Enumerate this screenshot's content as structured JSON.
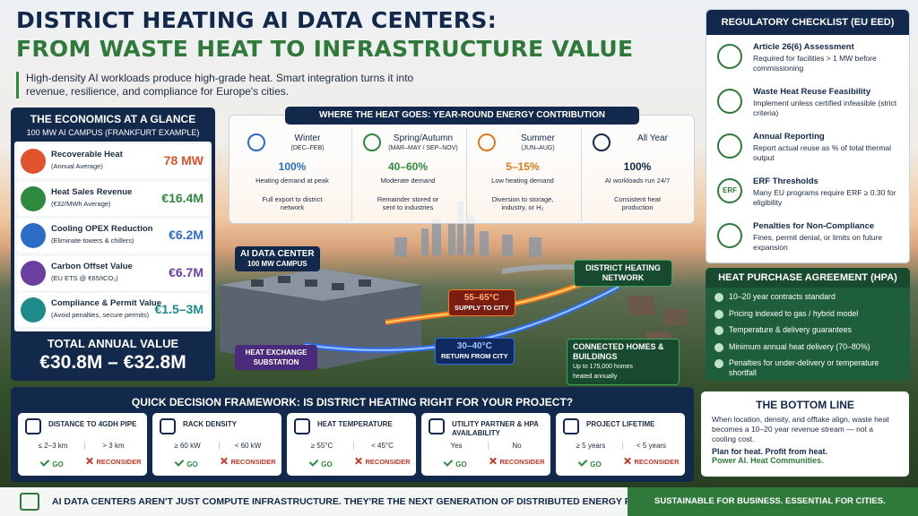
{
  "header": {
    "title_line1": "DISTRICT HEATING AI DATA CENTERS:",
    "title_line2": "FROM WASTE HEAT TO INFRASTRUCTURE VALUE",
    "subtitle": "High-density AI workloads produce high-grade heat. Smart integration turns it into revenue, resilience, and compliance for Europe's cities."
  },
  "economics": {
    "title": "THE ECONOMICS AT A GLANCE",
    "subtitle": "100 MW AI CAMPUS (FRANKFURT EXAMPLE)",
    "items": [
      {
        "label": "Recoverable Heat",
        "sub": "(Annual Average)",
        "value": "78 MW"
      },
      {
        "label": "Heat Sales Revenue",
        "sub": "(€32/MWh Average)",
        "value": "€16.4M"
      },
      {
        "label": "Cooling OPEX Reduction",
        "sub": "(Eliminate towers & chillers)",
        "value": "€6.2M"
      },
      {
        "label": "Carbon Offset Value",
        "sub": "(EU ETS @ €65/tCO₂)",
        "value": "€6.7M"
      },
      {
        "label": "Compliance & Permit Value",
        "sub": "(Avoid penalties, secure permits)",
        "value": "€1.5–3M"
      }
    ],
    "total_label": "TOTAL ANNUAL VALUE",
    "total_value": "€30.8M – €32.8M"
  },
  "heat_flow": {
    "title": "WHERE THE HEAT GOES: YEAR-ROUND ENERGY CONTRIBUTION",
    "seasons": [
      {
        "name": "Winter",
        "period": "(DEC–FEB)",
        "percent": "100%",
        "lines": [
          "Heating demand at peak",
          "Full export to district network"
        ]
      },
      {
        "name": "Spring/Autumn",
        "period": "(MAR–MAY / SEP–NOV)",
        "percent": "40–60%",
        "lines": [
          "Moderate demand",
          "Remainder stored or sent to industries"
        ]
      },
      {
        "name": "Summer",
        "period": "(JUN–AUG)",
        "percent": "5–15%",
        "lines": [
          "Low heating demand",
          "Diversion to storage, industry, or H₂"
        ]
      },
      {
        "name": "All Year",
        "percent": "100%",
        "lines": [
          "AI workloads run 24/7",
          "Consistent heat production"
        ]
      }
    ]
  },
  "scene": {
    "ai_center_title": "AI DATA CENTER",
    "ai_center_sub": "100 MW CAMPUS",
    "heat_exchange": "HEAT EXCHANGE SUBSTATION",
    "supply_temp": "55–65°C",
    "supply_label": "SUPPLY TO CITY",
    "return_temp": "30–40°C",
    "return_label": "RETURN FROM CITY",
    "network": "DISTRICT HEATING NETWORK",
    "homes_title": "CONNECTED HOMES & BUILDINGS",
    "homes_sub": "Up to 175,000 homes heated annually"
  },
  "regulatory": {
    "title": "REGULATORY CHECKLIST (EU EED)",
    "items": [
      {
        "title": "Article 26(6) Assessment",
        "desc": "Required for facilities > 1 MW before commissioning"
      },
      {
        "title": "Waste Heat Reuse Feasibility",
        "desc": "Implement unless certified infeasible (strict criteria)"
      },
      {
        "title": "Annual Reporting",
        "desc": "Report actual reuse as % of total thermal output"
      },
      {
        "title": "ERF Thresholds",
        "desc": "Many EU programs require ERF ≥ 0.30 for eligibility",
        "icon": "ERF"
      },
      {
        "title": "Penalties for Non-Compliance",
        "desc": "Fines, permit denial, or limits on future expansion"
      }
    ]
  },
  "hpa": {
    "title": "HEAT PURCHASE AGREEMENT (HPA)",
    "items": [
      "10–20 year contracts standard",
      "Pricing indexed to gas / hybrid model",
      "Temperature & delivery guarantees",
      "Minimum annual heat delivery (70–80%)",
      "Penalties for under-delivery or temperature shortfall"
    ]
  },
  "framework": {
    "title": "QUICK DECISION FRAMEWORK: IS DISTRICT HEATING RIGHT FOR YOUR PROJECT?",
    "go_label": "GO",
    "reconsider_label": "RECONSIDER",
    "criteria": [
      {
        "name": "DISTANCE TO 4GDH PIPE",
        "go": "≤ 2–3 km",
        "reconsider": "> 3 km"
      },
      {
        "name": "RACK DENSITY",
        "go": "≥ 60 kW",
        "reconsider": "< 60 kW"
      },
      {
        "name": "HEAT TEMPERATURE",
        "go": "≥ 55°C",
        "reconsider": "< 45°C"
      },
      {
        "name": "UTILITY PARTNER & HPA AVAILABILITY",
        "go": "Yes",
        "reconsider": "No"
      },
      {
        "name": "PROJECT LIFETIME",
        "go": "≥ 5 years",
        "reconsider": "< 5 years"
      }
    ]
  },
  "bottom_line": {
    "title": "THE BOTTOM LINE",
    "text": "When location, density, and offtake align, waste heat becomes a 10–20 year revenue stream — not a cooling cost.",
    "tagline1": "Plan for heat. Profit from heat.",
    "tagline2": "Power AI. Heat Communities."
  },
  "footer": {
    "left": "AI DATA CENTERS AREN'T JUST COMPUTE INFRASTRUCTURE. THEY'RE THE NEXT GENERATION OF DISTRIBUTED ENERGY PLANTS.",
    "right": "SUSTAINABLE FOR BUSINESS. ESSENTIAL FOR CITIES."
  }
}
